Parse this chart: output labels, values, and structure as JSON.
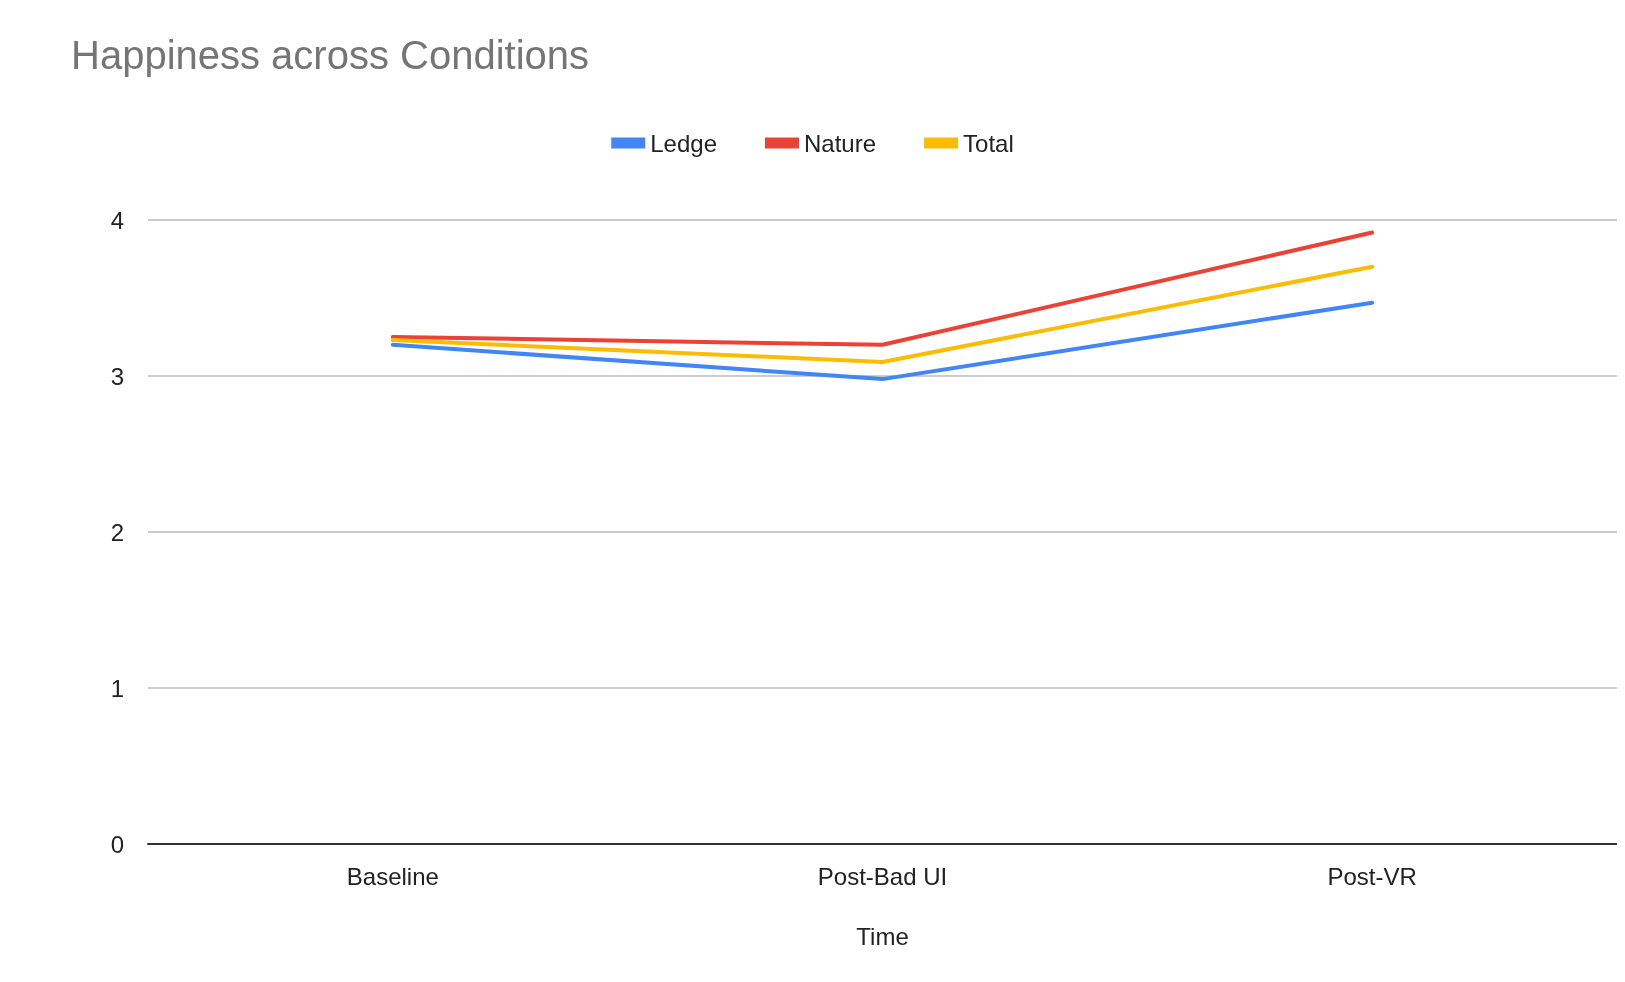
{
  "chart_data": {
    "type": "line",
    "title": "Happiness across Conditions",
    "xlabel": "Time",
    "categories": [
      "Baseline",
      "Post-Bad UI",
      "Post-VR"
    ],
    "series": [
      {
        "name": "Ledge",
        "color": "#4285f4",
        "values": [
          3.2,
          2.98,
          3.47
        ]
      },
      {
        "name": "Nature",
        "color": "#ea4335",
        "values": [
          3.25,
          3.2,
          3.92
        ]
      },
      {
        "name": "Total",
        "color": "#fbbc04",
        "values": [
          3.23,
          3.09,
          3.7
        ]
      }
    ],
    "ylim": [
      0,
      4
    ],
    "yticks": [
      0,
      1,
      2,
      3,
      4
    ],
    "grid": "y",
    "legend": "top",
    "marker": "none",
    "line_style": "solid"
  }
}
